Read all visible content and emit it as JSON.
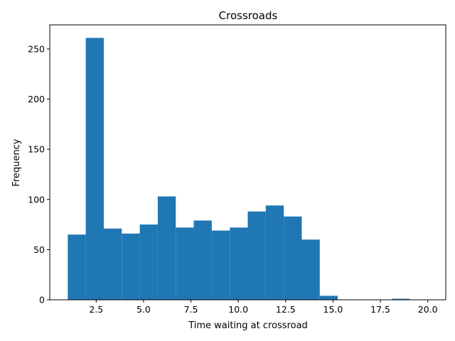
{
  "chart_data": {
    "type": "bar",
    "title": "Crossroads",
    "xlabel": "Time waiting at crossroad",
    "ylabel": "Frequency",
    "xlim": [
      0.05,
      20.95
    ],
    "ylim": [
      0,
      274
    ],
    "bins": {
      "edges": [
        1.0,
        1.95,
        2.9,
        3.85,
        4.8,
        5.75,
        6.7,
        7.65,
        8.6,
        9.55,
        10.5,
        11.45,
        12.4,
        13.35,
        14.3,
        15.25,
        16.2,
        17.15,
        18.1,
        19.05,
        20.0
      ],
      "counts": [
        65,
        261,
        71,
        66,
        75,
        103,
        72,
        79,
        69,
        72,
        88,
        94,
        83,
        60,
        4,
        0,
        0,
        0,
        1,
        0
      ]
    },
    "xticks": [
      2.5,
      5.0,
      7.5,
      10.0,
      12.5,
      15.0,
      17.5,
      20.0
    ],
    "xtick_labels": [
      "2.5",
      "5.0",
      "7.5",
      "10.0",
      "12.5",
      "15.0",
      "17.5",
      "20.0"
    ],
    "yticks": [
      0,
      50,
      100,
      150,
      200,
      250
    ],
    "ytick_labels": [
      "0",
      "50",
      "100",
      "150",
      "200",
      "250"
    ],
    "grid": false,
    "colors": {
      "bar": "#1f77b4",
      "axes": "#000000",
      "background": "#ffffff"
    }
  }
}
